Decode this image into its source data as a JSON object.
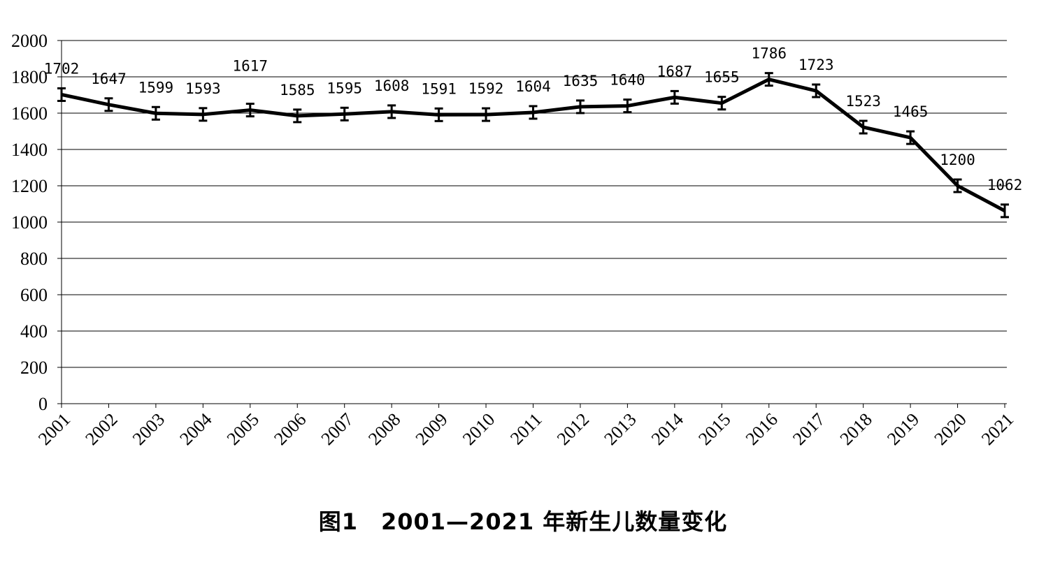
{
  "caption": "图1　2001—2021 年新生儿数量变化",
  "chart_data": {
    "type": "line",
    "title": "图1　2001—2021 年新生儿数量变化",
    "xlabel": "",
    "ylabel": "",
    "categories": [
      "2001",
      "2002",
      "2003",
      "2004",
      "2005",
      "2006",
      "2007",
      "2008",
      "2009",
      "2010",
      "2011",
      "2012",
      "2013",
      "2014",
      "2015",
      "2016",
      "2017",
      "2018",
      "2019",
      "2020",
      "2021"
    ],
    "values": [
      1702,
      1647,
      1599,
      1593,
      1617,
      1585,
      1595,
      1608,
      1591,
      1592,
      1604,
      1635,
      1640,
      1687,
      1655,
      1786,
      1723,
      1523,
      1465,
      1200,
      1062
    ],
    "labels": [
      "1702",
      "1647",
      "1599",
      "1593",
      "1617",
      "1585",
      "1595",
      "1608",
      "1591",
      "1592",
      "1604",
      "1635",
      "1640",
      "1687",
      "1655",
      "1786",
      "1723",
      "1523",
      "1465",
      "1200",
      "1062"
    ],
    "error_bars": true,
    "ylim": [
      0,
      2000
    ],
    "yticks": [
      "0",
      "200",
      "400",
      "600",
      "800",
      "1000",
      "1200",
      "1400",
      "1600",
      "1800",
      "2000"
    ],
    "grid": true,
    "line_color": "#000000",
    "grid_color": "#000000"
  }
}
